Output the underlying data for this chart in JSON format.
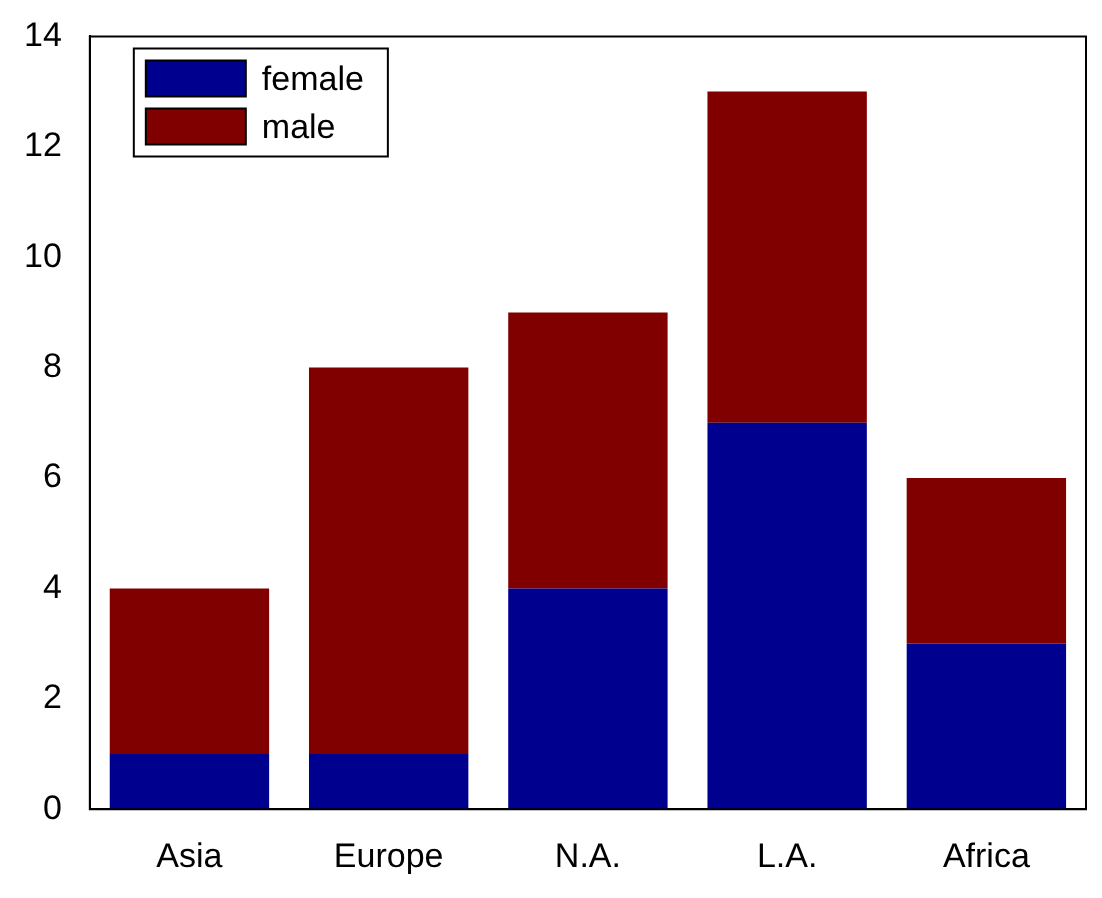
{
  "chart_data": {
    "type": "bar",
    "stacked": true,
    "categories": [
      "Asia",
      "Europe",
      "N.A.",
      "L.A.",
      "Africa"
    ],
    "series": [
      {
        "name": "female",
        "color": "#00008f",
        "values": [
          1,
          1,
          4,
          7,
          3
        ]
      },
      {
        "name": "male",
        "color": "#800000",
        "values": [
          3,
          7,
          5,
          6,
          3
        ]
      }
    ],
    "ylim": [
      0,
      14
    ],
    "yticks": [
      0,
      2,
      4,
      6,
      8,
      10,
      12,
      14
    ],
    "grid": false,
    "legend": "top left"
  }
}
